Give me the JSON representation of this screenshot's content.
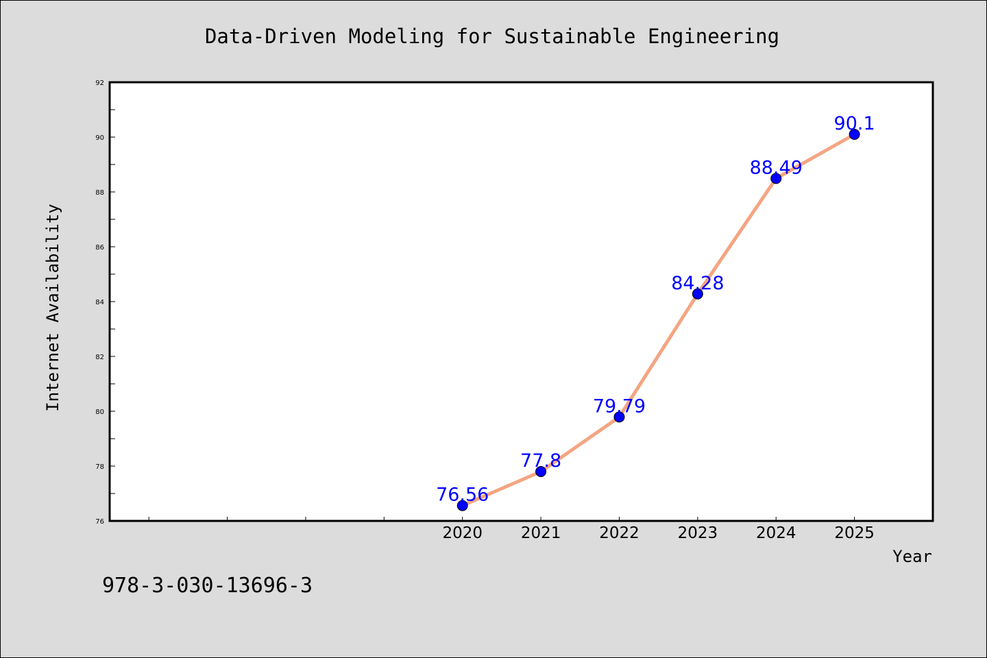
{
  "chart_data": {
    "type": "line",
    "title": "Data-Driven Modeling for Sustainable Engineering",
    "xlabel": "Year",
    "ylabel": "Internet Availability",
    "x": [
      "2020",
      "2021",
      "2022",
      "2023",
      "2024",
      "2025"
    ],
    "values": [
      76.56,
      77.8,
      79.79,
      84.28,
      88.49,
      90.1
    ],
    "data_labels": [
      "76.56",
      "77.8",
      "79.79",
      "84.28",
      "88.49",
      "90.1"
    ],
    "ylim": [
      76,
      92
    ],
    "xlim": [
      2015.5,
      2026
    ],
    "yticks": [
      76,
      78,
      80,
      82,
      84,
      86,
      88,
      90,
      92
    ],
    "grid": false,
    "line_color": "#f4a582",
    "marker_color": "#0000ff",
    "label_color": "#0000ff"
  },
  "footer": {
    "isbn": "978-3-030-13696-3"
  }
}
